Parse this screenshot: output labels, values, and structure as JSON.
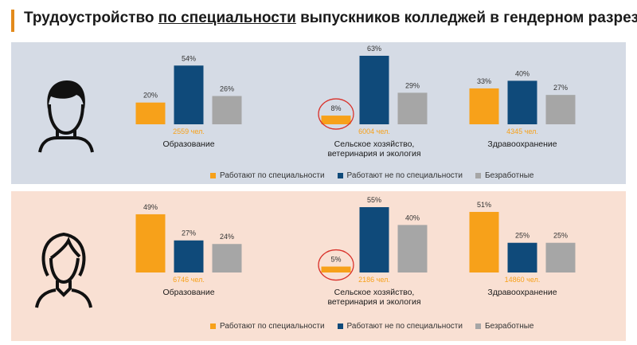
{
  "title": {
    "part1": "Трудоустройство",
    "part2": "по специальности",
    "part3": "выпускников колледжей в гендерном разрезе"
  },
  "colors": {
    "accent": "#e38a1c",
    "by_specialty": "#f7a11a",
    "not_by_specialty": "#0f4a7a",
    "unemployed": "#a6a6a6",
    "male_bg": "#d5dbe5",
    "female_bg": "#f9e0d3",
    "highlight_circle": "#d9322b"
  },
  "icons": {
    "male": "male-avatar-icon",
    "female": "female-avatar-icon"
  },
  "legend": {
    "by_specialty": "Работают по специальности",
    "not_by_specialty": "Работают не по специальности",
    "unemployed": "Безработные"
  },
  "chart_data": [
    {
      "type": "bar",
      "group": "male",
      "categories": [
        "Образование",
        "Сельское хозяйство, ветеринария и экология",
        "Здравоохранение"
      ],
      "category_lines": [
        [
          "Образование"
        ],
        [
          "Сельское хозяйство,",
          "ветеринария и экология"
        ],
        [
          "Здравоохранение"
        ]
      ],
      "counts": [
        "2559 чел.",
        "6004 чел.",
        "4345 чел."
      ],
      "series": [
        {
          "name": "Работают по специальности",
          "values": [
            20,
            8,
            33
          ],
          "labels": [
            "20%",
            "8%",
            "33%"
          ]
        },
        {
          "name": "Работают не по специальности",
          "values": [
            54,
            63,
            40
          ],
          "labels": [
            "54%",
            "63%",
            "40%"
          ]
        },
        {
          "name": "Безработные",
          "values": [
            26,
            29,
            27
          ],
          "labels": [
            "26%",
            "29%",
            "27%"
          ]
        }
      ],
      "highlight": {
        "category_index": 1,
        "series_index": 0
      },
      "ylim": [
        0,
        63
      ]
    },
    {
      "type": "bar",
      "group": "female",
      "categories": [
        "Образование",
        "Сельское хозяйство, ветеринария и экология",
        "Здравоохранение"
      ],
      "category_lines": [
        [
          "Образование"
        ],
        [
          "Сельское хозяйство,",
          "ветеринария и экология"
        ],
        [
          "Здравоохранение"
        ]
      ],
      "counts": [
        "6746 чел.",
        "2186 чел.",
        "14860 чел."
      ],
      "series": [
        {
          "name": "Работают по специальности",
          "values": [
            49,
            5,
            51
          ],
          "labels": [
            "49%",
            "5%",
            "51%"
          ]
        },
        {
          "name": "Работают не по специальности",
          "values": [
            27,
            55,
            25
          ],
          "labels": [
            "27%",
            "55%",
            "25%"
          ]
        },
        {
          "name": "Безработные",
          "values": [
            24,
            40,
            25
          ],
          "labels": [
            "24%",
            "40%",
            "25%"
          ]
        }
      ],
      "highlight": {
        "category_index": 1,
        "series_index": 0
      },
      "ylim": [
        0,
        55
      ]
    }
  ]
}
